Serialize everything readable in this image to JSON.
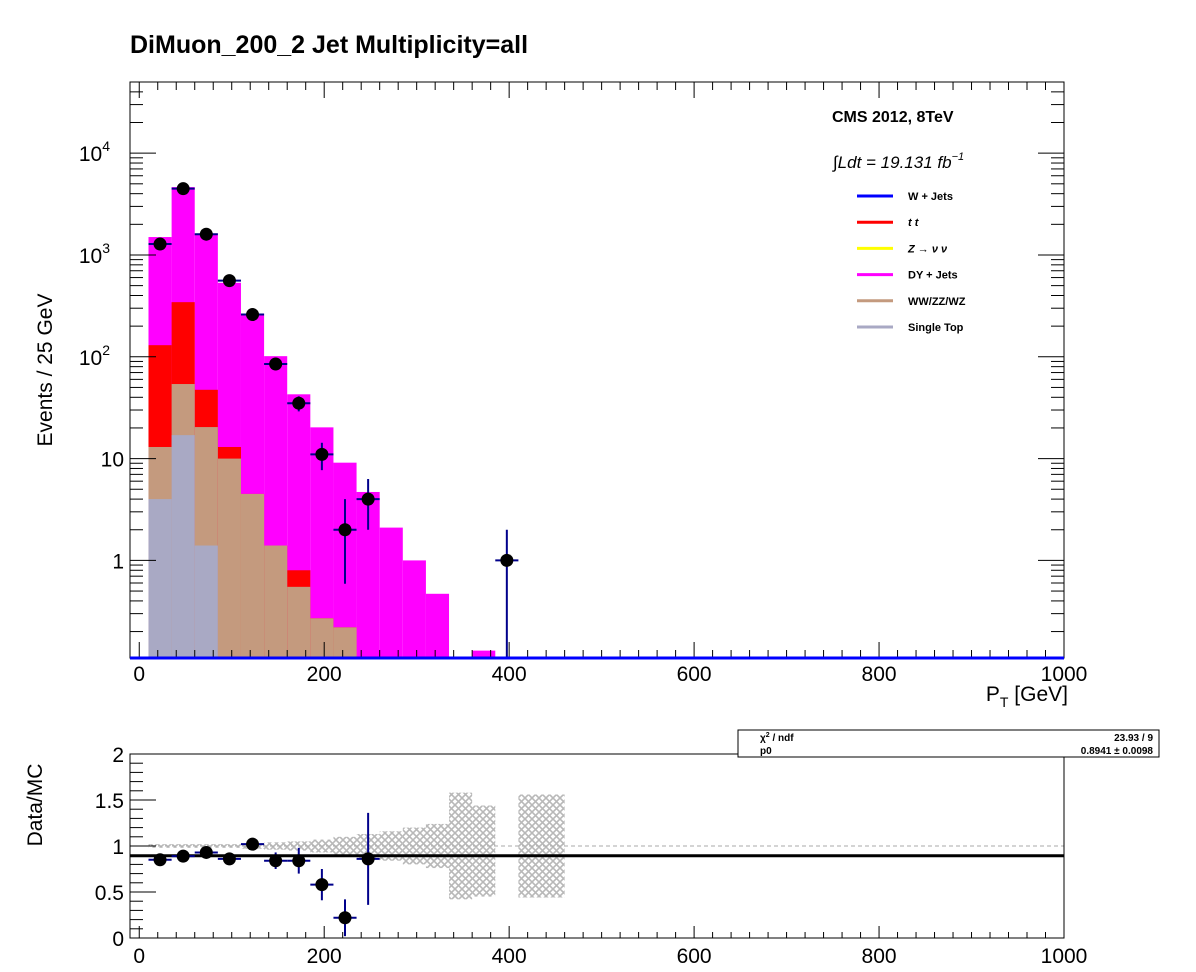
{
  "chart_data": [
    {
      "type": "bar",
      "stacked": true,
      "log_y": true,
      "title": "DiMuon_200_2    Jet Multiplicity=all",
      "xlabel": "P",
      "xlabel_sub": "T",
      "xlabel_unit": " [GeV]",
      "ylabel": "Events / 25 GeV",
      "xlim": [
        -10,
        1000
      ],
      "ylim": [
        0.11,
        50000
      ],
      "bin_width": 25,
      "bin_low_edges": [
        10,
        35,
        60,
        85,
        110,
        135,
        160,
        185,
        210,
        235,
        260,
        285,
        310,
        335,
        360,
        385
      ],
      "x_ticks": [
        0,
        200,
        400,
        600,
        800,
        1000
      ],
      "x_tick_labels": [
        "0",
        "200",
        "400",
        "600",
        "800",
        "1000"
      ],
      "y_ticks": [
        {
          "value": 1,
          "label": "1"
        },
        {
          "value": 10,
          "label": "10"
        },
        {
          "value": 100,
          "label": "10",
          "sup": "2"
        },
        {
          "value": 1000,
          "label": "10",
          "sup": "3"
        },
        {
          "value": 10000,
          "label": "10",
          "sup": "4"
        }
      ],
      "annotation_main": "CMS 2012, 8TeV",
      "annotation_lumi": "∫Ldt = 19.131 fb",
      "annotation_lumi_sup": "−1",
      "legend": [
        {
          "label": "W + Jets",
          "color": "#0000ff"
        },
        {
          "label": "t   t",
          "color": "#ff0000"
        },
        {
          "label": "Z → ν   ν",
          "color": "#ffff00"
        },
        {
          "label": "DY + Jets",
          "color": "#ff00ff"
        },
        {
          "label": "WW/ZZ/WZ",
          "color": "#c49a7e"
        },
        {
          "label": "Single Top",
          "color": "#a9a9c4"
        }
      ],
      "series": [
        {
          "name": "Single Top",
          "color": "#a9a9c4",
          "values": [
            4,
            17,
            1.4,
            0,
            0,
            0,
            0,
            0,
            0,
            0,
            0,
            0,
            0,
            0,
            0,
            0
          ]
        },
        {
          "name": "WW/ZZ/WZ",
          "color": "#c49a7e",
          "values": [
            9,
            37,
            19,
            10,
            4.5,
            1.4,
            0.55,
            0.27,
            0.22,
            0,
            0,
            0,
            0,
            0,
            0,
            0
          ]
        },
        {
          "name": "t t",
          "color": "#ff0000",
          "values": [
            117,
            290,
            27,
            3,
            0,
            0,
            0.25,
            0,
            0,
            0,
            0,
            0,
            0,
            0,
            0,
            0
          ]
        },
        {
          "name": "DY + Jets",
          "color": "#ff00ff",
          "values": [
            1370,
            4300,
            1580,
            520,
            260,
            100,
            42,
            20,
            8.9,
            4.7,
            2.1,
            1.0,
            0.47,
            0,
            0.13,
            0
          ]
        }
      ],
      "data_points": {
        "name": "Data",
        "x": [
          22.5,
          47.5,
          72.5,
          97.5,
          122.5,
          147.5,
          172.5,
          197.5,
          222.5,
          247.5,
          397.5
        ],
        "y": [
          1280,
          4480,
          1600,
          560,
          260,
          85,
          35,
          11,
          2,
          4,
          1
        ],
        "err_low": [
          36,
          67,
          40,
          24,
          16,
          9.2,
          5.9,
          3.3,
          1.41,
          2.0,
          0.99
        ],
        "err_high": [
          36,
          67,
          40,
          24,
          16,
          9.2,
          5.9,
          3.3,
          2.0,
          2.3,
          1.0
        ]
      }
    },
    {
      "type": "scatter",
      "title": "",
      "xlabel": "",
      "ylabel": "Data/MC",
      "xlim": [
        -10,
        1000
      ],
      "ylim": [
        0,
        2
      ],
      "x_ticks": [
        0,
        200,
        400,
        600,
        800,
        1000
      ],
      "x_tick_labels": [
        "0",
        "200",
        "400",
        "600",
        "800",
        "1000"
      ],
      "y_ticks": [
        0,
        0.5,
        1,
        1.5,
        2
      ],
      "y_tick_labels": [
        "0",
        "0.5",
        "1",
        "1.5",
        "2"
      ],
      "fit_value": 0.8941,
      "reference_line": 1,
      "stat_box": {
        "row1_label": "χ",
        "row1_label_sup": "2",
        "row1_label_rest": " / ndf",
        "row1_value": "23.93 / 9",
        "row2_label": "p0",
        "row2_value": "0.8941 ± 0.0098"
      },
      "ratio_points": {
        "x": [
          22.5,
          47.5,
          72.5,
          97.5,
          122.5,
          147.5,
          172.5,
          197.5,
          222.5,
          247.5
        ],
        "y": [
          0.85,
          0.89,
          0.93,
          0.86,
          1.02,
          0.84,
          0.84,
          0.58,
          0.22,
          0.86
        ],
        "err": [
          0.03,
          0.02,
          0.03,
          0.04,
          0.06,
          0.09,
          0.14,
          0.17,
          0.2,
          0.5
        ]
      },
      "mc_uncertainty_band": {
        "x_low": [
          10,
          35,
          60,
          85,
          110,
          135,
          160,
          185,
          210,
          235,
          260,
          285,
          310,
          335,
          360,
          385,
          410,
          435
        ],
        "low": [
          0.98,
          0.98,
          0.98,
          0.98,
          0.97,
          0.96,
          0.95,
          0.93,
          0.9,
          0.87,
          0.84,
          0.8,
          0.76,
          0.42,
          0.45,
          0,
          0.44,
          0.44
        ],
        "high": [
          1.02,
          1.02,
          1.02,
          1.02,
          1.03,
          1.04,
          1.05,
          1.07,
          1.1,
          1.13,
          1.16,
          1.2,
          1.24,
          1.58,
          1.44,
          0,
          1.56,
          1.56
        ]
      }
    }
  ]
}
